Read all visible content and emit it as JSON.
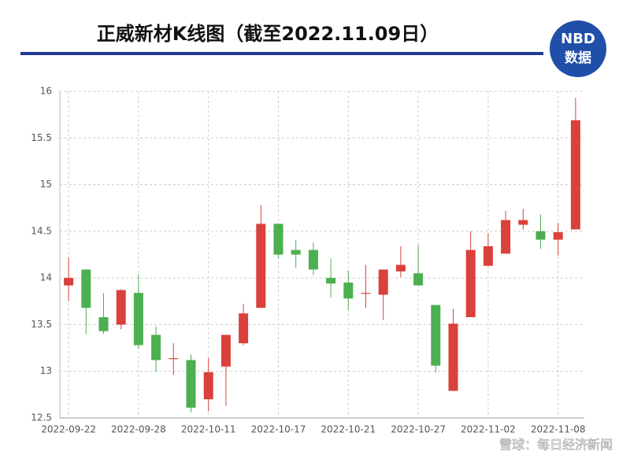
{
  "chart_data": {
    "type": "candlestick",
    "title": "正威新材K线图（截至2022.11.09日）",
    "logo": [
      "NBD",
      "数据"
    ],
    "footer": "雪球：每日经济新闻",
    "categories": [
      "2022-09-22",
      null,
      null,
      null,
      "2022-09-28",
      null,
      null,
      null,
      "2022-10-11",
      null,
      null,
      null,
      "2022-10-17",
      null,
      null,
      null,
      "2022-10-21",
      null,
      null,
      null,
      "2022-10-27",
      null,
      null,
      null,
      "2022-11-02",
      null,
      null,
      null,
      "2022-11-08",
      null
    ],
    "open": [
      13.92,
      14.09,
      13.58,
      13.5,
      13.84,
      13.39,
      13.13,
      13.12,
      12.7,
      13.05,
      13.3,
      13.68,
      14.58,
      14.3,
      14.3,
      14.0,
      13.95,
      13.83,
      13.82,
      14.07,
      14.05,
      13.71,
      12.79,
      13.58,
      14.13,
      14.26,
      14.57,
      14.5,
      14.41,
      14.52
    ],
    "high": [
      14.22,
      14.09,
      13.84,
      13.88,
      14.04,
      13.48,
      13.3,
      13.18,
      13.14,
      13.39,
      13.72,
      14.78,
      14.58,
      14.41,
      14.38,
      14.21,
      14.08,
      14.14,
      14.09,
      14.34,
      14.35,
      13.71,
      13.67,
      14.5,
      14.48,
      14.72,
      14.74,
      14.68,
      14.59,
      15.93
    ],
    "low": [
      13.75,
      13.4,
      13.4,
      13.45,
      13.24,
      12.99,
      12.96,
      12.56,
      12.57,
      12.63,
      13.28,
      13.68,
      14.21,
      14.11,
      14.03,
      13.79,
      13.66,
      13.68,
      13.55,
      14.01,
      13.92,
      12.99,
      12.79,
      13.58,
      14.13,
      14.26,
      14.52,
      14.31,
      14.24,
      14.52
    ],
    "close": [
      14.0,
      13.68,
      13.43,
      13.87,
      13.28,
      13.12,
      13.14,
      12.61,
      12.99,
      13.39,
      13.62,
      14.58,
      14.25,
      14.25,
      14.09,
      13.94,
      13.78,
      13.84,
      14.09,
      14.14,
      13.92,
      13.06,
      13.51,
      14.3,
      14.34,
      14.62,
      14.62,
      14.41,
      14.49,
      15.69
    ],
    "up_color": "#d9413a",
    "down_color": "#4caf50",
    "ylim": [
      12.5,
      16
    ],
    "yticks": [
      12.5,
      13,
      13.5,
      14,
      14.5,
      15,
      15.5,
      16
    ],
    "grid": true
  }
}
